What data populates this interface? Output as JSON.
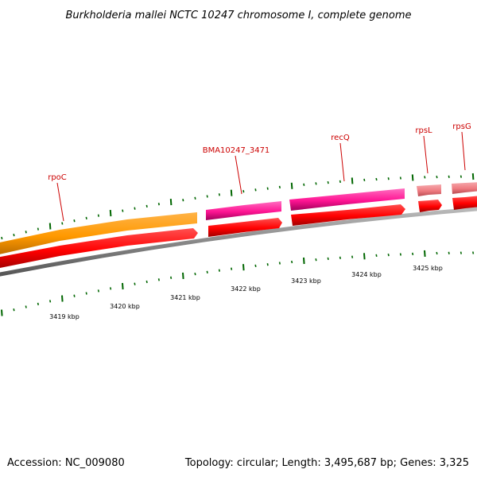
{
  "title": "Burkholderia mallei NCTC 10247 chromosome I, complete genome",
  "footer": {
    "accession": "Accession: NC_009080",
    "topology": "Topology: circular; Length: 3,495,687 bp; Genes: 3,325"
  },
  "ruler": {
    "labels": [
      "3419 kbp",
      "3420 kbp",
      "3421 kbp",
      "3422 kbp",
      "3423 kbp",
      "3424 kbp",
      "3425 kbp"
    ]
  },
  "genes": [
    {
      "name": "rpoC",
      "color": "#ff9900",
      "strand": "forward"
    },
    {
      "name": "BMA10247_3471",
      "color": "#ff1493",
      "strand": "forward"
    },
    {
      "name": "recQ",
      "color": "#ff1493",
      "strand": "forward"
    },
    {
      "name": "rpsL",
      "color": "#ee7a80",
      "strand": "forward"
    },
    {
      "name": "rpsG",
      "color": "#ee7a80",
      "strand": "forward"
    }
  ],
  "colors": {
    "cds": "#ff0000",
    "tick": "#006600",
    "backbone": "#888888",
    "label": "#cc0000"
  }
}
